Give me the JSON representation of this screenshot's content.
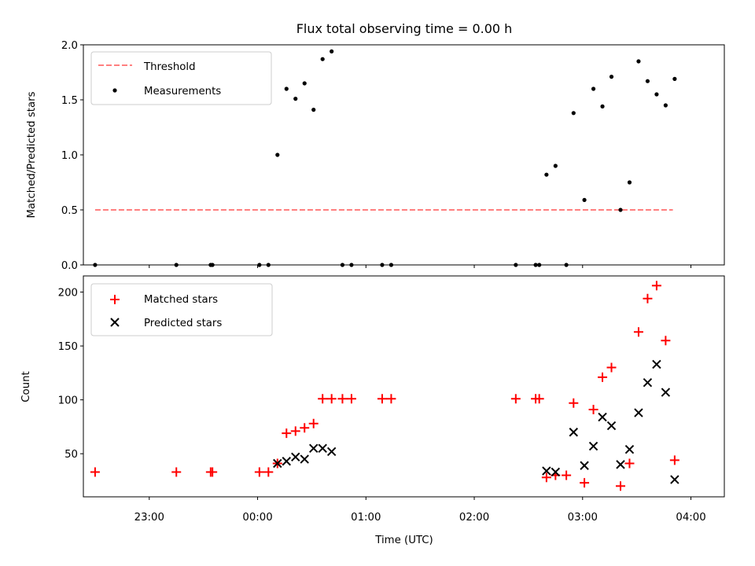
{
  "chart_data": [
    {
      "type": "scatter",
      "title": "Flux total observing time = 0.00 h",
      "ylabel": "Matched/Predicted stars",
      "xlabel": "",
      "ylim": [
        0,
        2.0
      ],
      "yticks": [
        "0.0",
        "0.5",
        "1.0",
        "1.5",
        "2.0"
      ],
      "ytick_values": [
        0,
        0.5,
        1.0,
        1.5,
        2.0
      ],
      "legend_position": "top-left",
      "series": [
        {
          "name": "Threshold",
          "kind": "dashed-line",
          "color": "#ff7f7f",
          "points": [
            [
              "22:30",
              0.5
            ],
            [
              "03:50",
              0.5
            ]
          ]
        },
        {
          "name": "Measurements",
          "kind": "dot",
          "color": "#000000",
          "points": [
            [
              "22:30",
              0.0
            ],
            [
              "23:15",
              0.0
            ],
            [
              "23:34",
              0.0
            ],
            [
              "23:35",
              0.0
            ],
            [
              "00:01",
              0.0
            ],
            [
              "00:06",
              0.0
            ],
            [
              "00:11",
              1.0
            ],
            [
              "00:16",
              1.6
            ],
            [
              "00:21",
              1.51
            ],
            [
              "00:26",
              1.65
            ],
            [
              "00:31",
              1.41
            ],
            [
              "00:36",
              1.87
            ],
            [
              "00:41",
              1.94
            ],
            [
              "00:47",
              0.0
            ],
            [
              "00:52",
              0.0
            ],
            [
              "01:09",
              0.0
            ],
            [
              "01:14",
              0.0
            ],
            [
              "02:23",
              0.0
            ],
            [
              "02:34",
              0.0
            ],
            [
              "02:36",
              0.0
            ],
            [
              "02:51",
              0.0
            ],
            [
              "02:40",
              0.82
            ],
            [
              "02:45",
              0.9
            ],
            [
              "02:55",
              1.38
            ],
            [
              "03:01",
              0.59
            ],
            [
              "03:06",
              1.6
            ],
            [
              "03:11",
              1.44
            ],
            [
              "03:16",
              1.71
            ],
            [
              "03:21",
              0.5
            ],
            [
              "03:26",
              0.75
            ],
            [
              "03:31",
              1.85
            ],
            [
              "03:36",
              1.67
            ],
            [
              "03:41",
              1.55
            ],
            [
              "03:46",
              1.45
            ],
            [
              "03:51",
              1.69
            ]
          ]
        }
      ]
    },
    {
      "type": "scatter",
      "title": "",
      "ylabel": "Count",
      "xlabel": "Time (UTC)",
      "ylim": [
        10,
        215
      ],
      "yticks": [
        "50",
        "100",
        "150",
        "200"
      ],
      "ytick_values": [
        50,
        100,
        150,
        200
      ],
      "xticks": [
        "23:00",
        "00:00",
        "01:00",
        "02:00",
        "03:00",
        "04:00"
      ],
      "legend_position": "top-left",
      "series": [
        {
          "name": "Matched stars",
          "kind": "plus",
          "color": "#ff0000",
          "points": [
            [
              "22:30",
              33
            ],
            [
              "23:15",
              33
            ],
            [
              "23:34",
              33
            ],
            [
              "23:35",
              33
            ],
            [
              "00:01",
              33
            ],
            [
              "00:06",
              33
            ],
            [
              "00:11",
              41
            ],
            [
              "00:16",
              69
            ],
            [
              "00:21",
              71
            ],
            [
              "00:26",
              74
            ],
            [
              "00:31",
              78
            ],
            [
              "00:36",
              101
            ],
            [
              "00:41",
              101
            ],
            [
              "00:47",
              101
            ],
            [
              "00:52",
              101
            ],
            [
              "01:09",
              101
            ],
            [
              "01:14",
              101
            ],
            [
              "02:23",
              101
            ],
            [
              "02:34",
              101
            ],
            [
              "02:36",
              101
            ],
            [
              "02:40",
              28
            ],
            [
              "02:45",
              30
            ],
            [
              "02:51",
              30
            ],
            [
              "02:55",
              97
            ],
            [
              "03:01",
              23
            ],
            [
              "03:06",
              91
            ],
            [
              "03:11",
              121
            ],
            [
              "03:16",
              130
            ],
            [
              "03:21",
              20
            ],
            [
              "03:26",
              41
            ],
            [
              "03:31",
              163
            ],
            [
              "03:36",
              194
            ],
            [
              "03:41",
              206
            ],
            [
              "03:46",
              155
            ],
            [
              "03:51",
              44
            ]
          ]
        },
        {
          "name": "Predicted stars",
          "kind": "cross",
          "color": "#000000",
          "points": [
            [
              "00:11",
              41
            ],
            [
              "00:16",
              43
            ],
            [
              "00:21",
              47
            ],
            [
              "00:26",
              45
            ],
            [
              "00:31",
              55
            ],
            [
              "00:36",
              55
            ],
            [
              "00:41",
              52
            ],
            [
              "02:40",
              34
            ],
            [
              "02:45",
              33
            ],
            [
              "02:55",
              70
            ],
            [
              "03:01",
              39
            ],
            [
              "03:06",
              57
            ],
            [
              "03:11",
              84
            ],
            [
              "03:16",
              76
            ],
            [
              "03:21",
              40
            ],
            [
              "03:26",
              54
            ],
            [
              "03:31",
              88
            ],
            [
              "03:36",
              116
            ],
            [
              "03:41",
              133
            ],
            [
              "03:46",
              107
            ],
            [
              "03:51",
              26
            ]
          ]
        }
      ]
    }
  ]
}
